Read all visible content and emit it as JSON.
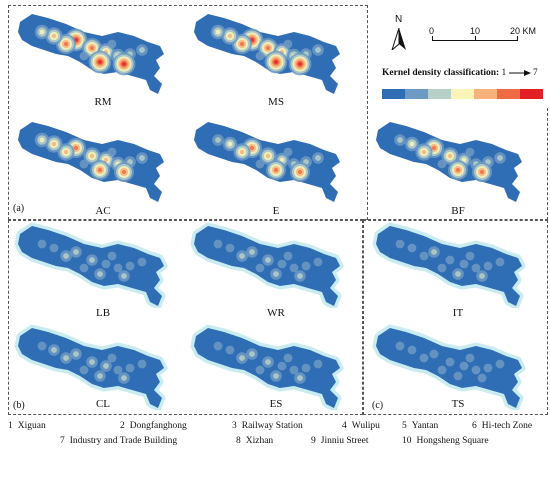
{
  "panels": [
    {
      "id": "RM",
      "label": "RM",
      "intensity": 0.85,
      "palette": "warm"
    },
    {
      "id": "MS",
      "label": "MS",
      "intensity": 0.95,
      "palette": "warm"
    },
    {
      "id": "AC",
      "label": "AC",
      "intensity": 0.8,
      "palette": "warm"
    },
    {
      "id": "E",
      "label": "E",
      "intensity": 0.75,
      "palette": "warm"
    },
    {
      "id": "BF",
      "label": "BF",
      "intensity": 0.7,
      "palette": "warm"
    },
    {
      "id": "LB",
      "label": "LB",
      "intensity": 0.45,
      "palette": "cool"
    },
    {
      "id": "WR",
      "label": "WR",
      "intensity": 0.45,
      "palette": "cool"
    },
    {
      "id": "IT",
      "label": "IT",
      "intensity": 0.35,
      "palette": "cool"
    },
    {
      "id": "CL",
      "label": "CL",
      "intensity": 0.5,
      "palette": "cool"
    },
    {
      "id": "ES",
      "label": "ES",
      "intensity": 0.45,
      "palette": "cool"
    },
    {
      "id": "TS",
      "label": "TS",
      "intensity": 0.3,
      "palette": "cool"
    }
  ],
  "groups": {
    "a": "(a)",
    "b": "(b)",
    "c": "(c)"
  },
  "north": {
    "label": "N",
    "icon": "north-arrow-icon"
  },
  "scale_bar": {
    "ticks": [
      "0",
      "10",
      "20 KM"
    ]
  },
  "legend": {
    "title": "Kernel density classification:",
    "range_from": "1",
    "range_to": "7",
    "classes": [
      {
        "class": 1,
        "color": "#2f6db4"
      },
      {
        "class": 2,
        "color": "#6d9ac4"
      },
      {
        "class": 3,
        "color": "#b6cfc7"
      },
      {
        "class": 4,
        "color": "#fbf4b8"
      },
      {
        "class": 5,
        "color": "#f7b17a"
      },
      {
        "class": 6,
        "color": "#ee6b44"
      },
      {
        "class": 7,
        "color": "#e31f26"
      }
    ]
  },
  "places": [
    {
      "num": "1",
      "name": "Xiguan"
    },
    {
      "num": "2",
      "name": "Dongfanghong"
    },
    {
      "num": "3",
      "name": "Railway Station"
    },
    {
      "num": "4",
      "name": "Wulipu"
    },
    {
      "num": "5",
      "name": "Yantan"
    },
    {
      "num": "6",
      "name": "Hi-tech Zone"
    },
    {
      "num": "7",
      "name": "Industry and Trade Building"
    },
    {
      "num": "8",
      "name": "Xizhan"
    },
    {
      "num": "9",
      "name": "Jinniu Street"
    },
    {
      "num": "10",
      "name": "Hongsheng Square"
    }
  ]
}
